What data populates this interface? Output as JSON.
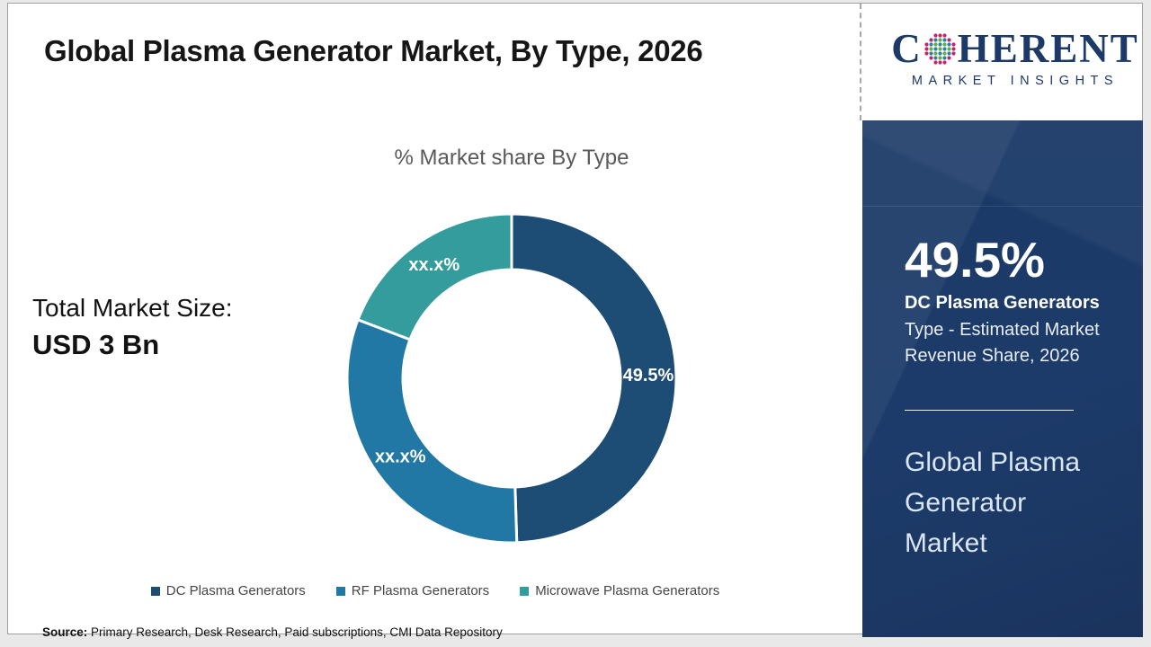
{
  "header": {
    "title": "Global Plasma Generator Market, By Type, 2026"
  },
  "logo": {
    "word_start": "C",
    "word_end": "HERENT",
    "tagline": "MARKET INSIGHTS",
    "globe_icon": "dotted-globe",
    "brand_color": "#1c3968",
    "globe_dot_colors": {
      "outer": "#c2256c",
      "green": "#5fae3f",
      "blue": "#2b7fa9"
    }
  },
  "market_size": {
    "label": "Total Market Size:",
    "value": "USD 3 Bn"
  },
  "chart_data": {
    "type": "pie",
    "subtype": "donut",
    "title": "% Market share By Type",
    "unit": "%",
    "start_angle_deg": 0,
    "legend_position": "bottom",
    "slices": [
      {
        "label": "DC Plasma Generators",
        "display": "49.5%",
        "value": 49.5,
        "estimated": false,
        "color": "#1d4c74"
      },
      {
        "label": "RF Plasma Generators",
        "display": "xx.x%",
        "value": 31.3,
        "estimated": true,
        "color": "#2178a4"
      },
      {
        "label": "Microwave Plasma Generators",
        "display": "xx.x%",
        "value": 19.2,
        "estimated": true,
        "color": "#359c9e"
      }
    ]
  },
  "sidebar": {
    "stat_value": "49.5%",
    "stat_title": "DC Plasma Generators",
    "stat_subtitle": "Type - Estimated Market Revenue Share, 2026",
    "report_title": "Global Plasma Generator Market",
    "background_color": "#1c3a66"
  },
  "source": {
    "prefix": "Source:",
    "text": "Primary Research, Desk Research, Paid subscriptions, CMI Data Repository"
  }
}
